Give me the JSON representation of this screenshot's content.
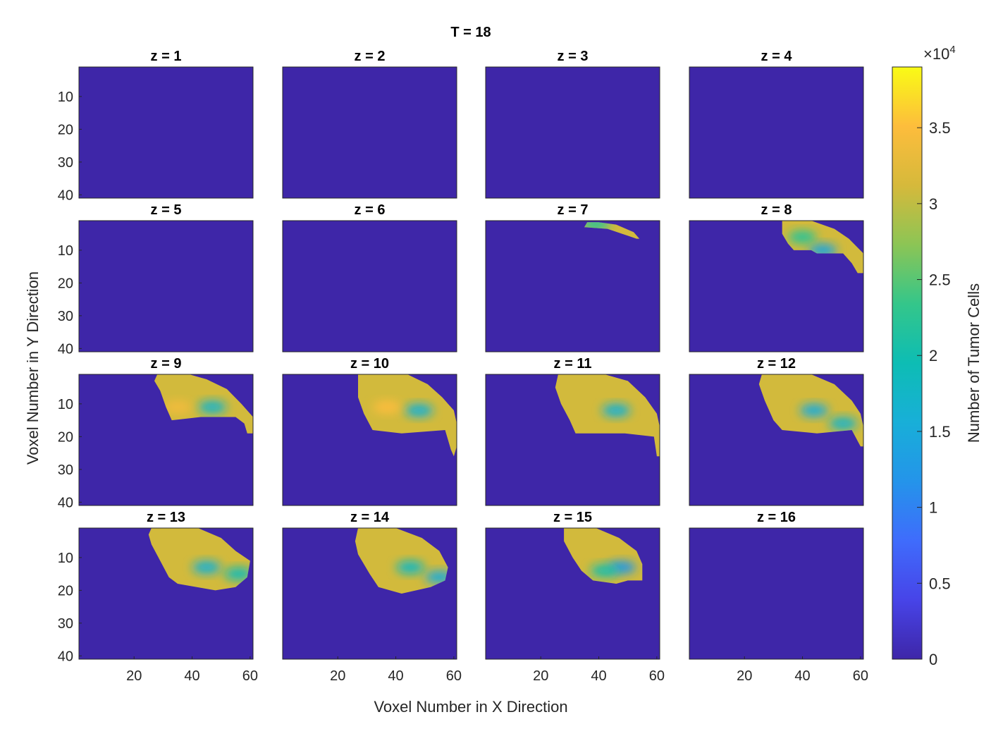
{
  "chart_data": {
    "type": "heatmap",
    "title": "T = 18",
    "xlabel": "Voxel Number in X Direction",
    "ylabel": "Voxel Number in Y Direction",
    "x_range": [
      1,
      61
    ],
    "y_range": [
      1,
      41
    ],
    "x_ticks": [
      20,
      40,
      60
    ],
    "y_ticks": [
      10,
      20,
      30,
      40
    ],
    "colormap": "parula",
    "background_color": "#3e26a8",
    "colorbar": {
      "label": "Number of Tumor Cells",
      "multiplier": "×10",
      "exponent": "4",
      "range": [
        0,
        3.9
      ],
      "ticks": [
        0,
        0.5,
        1,
        1.5,
        2,
        2.5,
        3,
        3.5
      ],
      "tick_labels": [
        "0",
        "0.5",
        "1",
        "1.5",
        "2",
        "2.5",
        "3",
        "3.5"
      ]
    },
    "panels": [
      {
        "title": "z = 1",
        "region": null,
        "hotspots": []
      },
      {
        "title": "z = 2",
        "region": null,
        "hotspots": []
      },
      {
        "title": "z = 3",
        "region": null,
        "hotspots": []
      },
      {
        "title": "z = 4",
        "region": null,
        "hotspots": []
      },
      {
        "title": "z = 5",
        "region": null,
        "hotspots": []
      },
      {
        "title": "z = 6",
        "region": null,
        "hotspots": []
      },
      {
        "title": "z = 7",
        "region": [
          [
            36,
            1.5
          ],
          [
            40,
            1.5
          ],
          [
            46,
            2.2
          ],
          [
            52,
            4.5
          ],
          [
            54,
            6.5
          ],
          [
            53,
            6.5
          ],
          [
            48,
            5
          ],
          [
            43,
            3.5
          ],
          [
            35,
            3
          ]
        ],
        "hotspots": [
          {
            "x": 39,
            "y": 2,
            "value": 2.2
          }
        ]
      },
      {
        "title": "z = 8",
        "region": [
          [
            33,
            1
          ],
          [
            43,
            1
          ],
          [
            51,
            3.5
          ],
          [
            56,
            6.5
          ],
          [
            61,
            11
          ],
          [
            61,
            17
          ],
          [
            59,
            17
          ],
          [
            57,
            14
          ],
          [
            54,
            11
          ],
          [
            45,
            11
          ],
          [
            43,
            10
          ],
          [
            37,
            10
          ],
          [
            35,
            8
          ],
          [
            33,
            5
          ]
        ],
        "hotspots": [
          {
            "x": 47,
            "y": 10,
            "value": 1.4
          },
          {
            "x": 40,
            "y": 6,
            "value": 2.2
          }
        ]
      },
      {
        "title": "z = 9",
        "region": [
          [
            28,
            1
          ],
          [
            39,
            1
          ],
          [
            45,
            2.5
          ],
          [
            52,
            5.5
          ],
          [
            57,
            10
          ],
          [
            61,
            14
          ],
          [
            61,
            19
          ],
          [
            59,
            19
          ],
          [
            58,
            16
          ],
          [
            55,
            14
          ],
          [
            43,
            14
          ],
          [
            33,
            15
          ],
          [
            31,
            11
          ],
          [
            29,
            6
          ],
          [
            27,
            3
          ]
        ],
        "hotspots": [
          {
            "x": 47,
            "y": 11,
            "value": 1.7
          },
          {
            "x": 35,
            "y": 11,
            "value": 3.4
          }
        ]
      },
      {
        "title": "z = 10",
        "region": [
          [
            27,
            1
          ],
          [
            44,
            1
          ],
          [
            51,
            4
          ],
          [
            56,
            8
          ],
          [
            60,
            12
          ],
          [
            61,
            16
          ],
          [
            61,
            23
          ],
          [
            60,
            26
          ],
          [
            59,
            24
          ],
          [
            57,
            18
          ],
          [
            42,
            19
          ],
          [
            32,
            18
          ],
          [
            29,
            13
          ],
          [
            27,
            8
          ]
        ],
        "hotspots": [
          {
            "x": 48,
            "y": 12,
            "value": 1.6
          },
          {
            "x": 37,
            "y": 11,
            "value": 3.5
          }
        ]
      },
      {
        "title": "z = 11",
        "region": [
          [
            26,
            1
          ],
          [
            42,
            1
          ],
          [
            50,
            3
          ],
          [
            56,
            8
          ],
          [
            60,
            13
          ],
          [
            61,
            17
          ],
          [
            61,
            26
          ],
          [
            60,
            26
          ],
          [
            59,
            20
          ],
          [
            49,
            19
          ],
          [
            32,
            19
          ],
          [
            30,
            15
          ],
          [
            27,
            10
          ],
          [
            25,
            5
          ]
        ],
        "hotspots": [
          {
            "x": 46,
            "y": 12,
            "value": 1.6
          }
        ]
      },
      {
        "title": "z = 12",
        "region": [
          [
            26,
            1
          ],
          [
            43,
            1
          ],
          [
            51,
            4
          ],
          [
            57,
            9
          ],
          [
            60,
            13
          ],
          [
            61,
            17
          ],
          [
            61,
            23
          ],
          [
            60,
            23
          ],
          [
            57,
            18
          ],
          [
            45,
            19
          ],
          [
            33,
            18
          ],
          [
            30,
            15
          ],
          [
            27,
            9
          ],
          [
            25,
            4
          ]
        ],
        "hotspots": [
          {
            "x": 44,
            "y": 12,
            "value": 1.5
          },
          {
            "x": 54,
            "y": 16,
            "value": 1.7
          }
        ]
      },
      {
        "title": "z = 13",
        "region": [
          [
            26,
            1
          ],
          [
            42,
            1
          ],
          [
            50,
            4
          ],
          [
            55,
            8
          ],
          [
            60,
            11
          ],
          [
            59,
            16
          ],
          [
            55,
            19
          ],
          [
            48,
            20
          ],
          [
            35,
            18
          ],
          [
            32,
            16
          ],
          [
            29,
            11
          ],
          [
            26,
            6
          ],
          [
            25,
            3
          ]
        ],
        "hotspots": [
          {
            "x": 45,
            "y": 13,
            "value": 1.6
          },
          {
            "x": 56,
            "y": 15,
            "value": 1.9
          }
        ]
      },
      {
        "title": "z = 14",
        "region": [
          [
            27,
            1
          ],
          [
            40,
            1
          ],
          [
            49,
            4
          ],
          [
            55,
            8
          ],
          [
            58,
            13
          ],
          [
            57,
            17
          ],
          [
            52,
            19
          ],
          [
            42,
            21
          ],
          [
            34,
            19
          ],
          [
            31,
            15
          ],
          [
            27,
            9
          ],
          [
            26,
            5
          ]
        ],
        "hotspots": [
          {
            "x": 45,
            "y": 13,
            "value": 1.8
          },
          {
            "x": 55,
            "y": 16,
            "value": 1.5
          }
        ]
      },
      {
        "title": "z = 15",
        "region": [
          [
            28,
            1
          ],
          [
            39,
            1
          ],
          [
            47,
            4
          ],
          [
            53,
            8
          ],
          [
            55,
            12
          ],
          [
            55,
            17
          ],
          [
            50,
            17
          ],
          [
            46,
            18
          ],
          [
            38,
            17
          ],
          [
            34,
            14
          ],
          [
            31,
            10
          ],
          [
            28,
            5
          ]
        ],
        "hotspots": [
          {
            "x": 48,
            "y": 13,
            "value": 1.2
          },
          {
            "x": 42,
            "y": 14,
            "value": 2.0
          }
        ]
      },
      {
        "title": "z = 16",
        "region": null,
        "hotspots": []
      }
    ]
  }
}
